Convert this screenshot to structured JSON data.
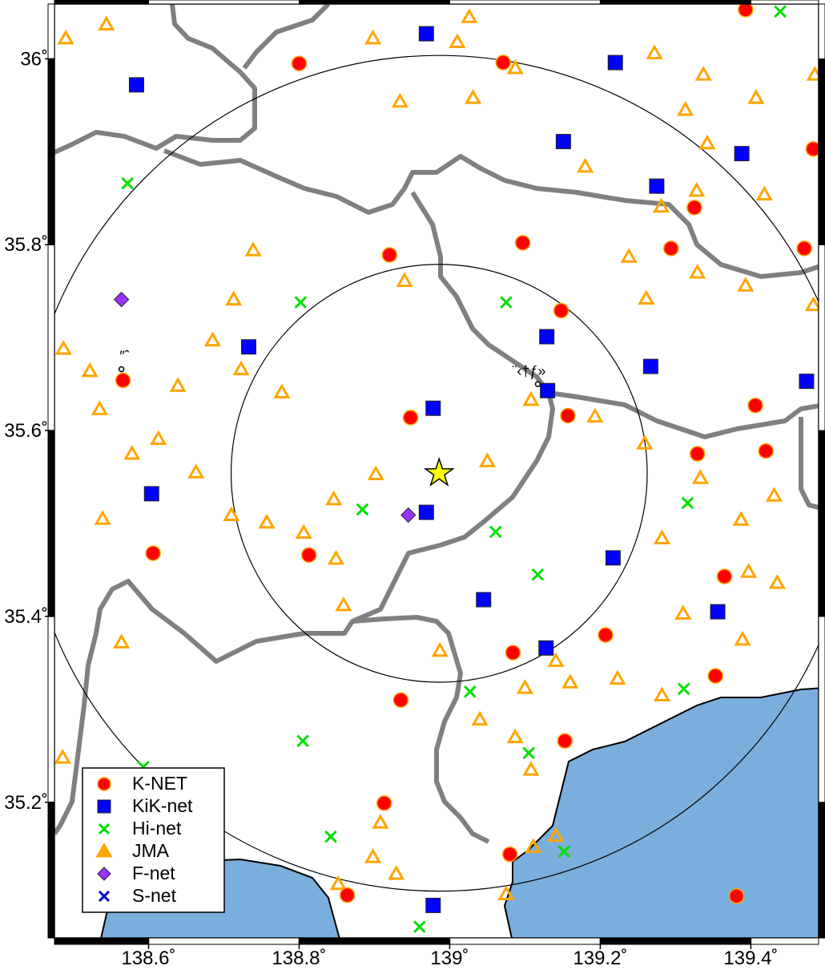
{
  "chart_data": {
    "type": "map",
    "xlim": [
      138.475,
      139.49
    ],
    "ylim": [
      35.054,
      36.059
    ],
    "xticks": [
      {
        "value": 138.6,
        "label": "138.6˚"
      },
      {
        "value": 138.8,
        "label": "138.8˚"
      },
      {
        "value": 139,
        "label": "139˚"
      },
      {
        "value": 139.2,
        "label": "139.2˚"
      },
      {
        "value": 139.4,
        "label": "139.4˚"
      }
    ],
    "yticks": [
      {
        "value": 35.2,
        "label": "35.2˚"
      },
      {
        "value": 35.4,
        "label": "35.4˚"
      },
      {
        "value": 35.6,
        "label": "35.6˚"
      },
      {
        "value": 35.8,
        "label": "35.8˚"
      },
      {
        "value": 36,
        "label": "36˚"
      }
    ],
    "epicenter": {
      "lon": 138.986,
      "lat": 35.554
    },
    "circle_radii_km": [
      25,
      50
    ],
    "places": [
      {
        "label": "″ˆ",
        "lon": 138.564,
        "lat": 35.666
      },
      {
        "label": "¨‹†ƒ»",
        "lon": 139.117,
        "lat": 35.65
      }
    ],
    "legend": "bottom-left",
    "series": [
      {
        "name": "K-NET",
        "color": "#ff0000",
        "marker": "circle",
        "x": [
          138.8,
          139.071,
          139.393,
          138.92,
          139.097,
          139.294,
          139.148,
          139.325,
          139.483,
          139.471,
          138.566,
          138.948,
          139.157,
          139.406,
          139.42,
          139.329,
          138.606,
          138.813,
          139.365,
          139.207,
          139.084,
          138.935,
          139.353,
          139.153,
          138.913,
          139.08,
          138.864,
          139.381
        ],
        "values": [
          35.995,
          35.996,
          36.053,
          35.789,
          35.802,
          35.796,
          35.729,
          35.84,
          35.903,
          35.796,
          35.654,
          35.614,
          35.616,
          35.627,
          35.578,
          35.575,
          35.468,
          35.466,
          35.443,
          35.38,
          35.361,
          35.31,
          35.336,
          35.266,
          35.199,
          35.144,
          35.1,
          35.099
        ]
      },
      {
        "name": "KiK-net",
        "color": "#0000ff",
        "marker": "square",
        "x": [
          138.584,
          138.969,
          139.22,
          139.151,
          139.388,
          139.275,
          138.733,
          139.129,
          139.267,
          139.474,
          139.13,
          138.978,
          138.604,
          138.969,
          139.217,
          139.045,
          139.128,
          139.356,
          138.978
        ],
        "values": [
          35.972,
          36.027,
          35.996,
          35.911,
          35.898,
          35.863,
          35.69,
          35.701,
          35.669,
          35.653,
          35.643,
          35.624,
          35.532,
          35.512,
          35.463,
          35.418,
          35.366,
          35.405,
          35.089
        ]
      },
      {
        "name": "Hi-net",
        "color": "#00e000",
        "marker": "x",
        "x": [
          139.439,
          138.572,
          138.802,
          139.075,
          138.884,
          139.061,
          139.117,
          139.027,
          138.805,
          139.105,
          139.316,
          139.311,
          138.593,
          138.842,
          139.152,
          138.96
        ],
        "values": [
          36.051,
          35.866,
          35.738,
          35.738,
          35.515,
          35.491,
          35.445,
          35.319,
          35.266,
          35.253,
          35.522,
          35.322,
          35.238,
          35.163,
          35.147,
          35.066
        ]
      },
      {
        "name": "JMA",
        "color": "#ffa500",
        "marker": "triangle",
        "x": [
          138.49,
          138.544,
          139.026,
          139.01,
          138.898,
          139.087,
          139.337,
          138.934,
          139.031,
          139.313,
          139.272,
          139.342,
          139.407,
          139.18,
          139.418,
          139.328,
          139.281,
          139.238,
          138.739,
          138.94,
          139.329,
          139.261,
          139.393,
          138.713,
          138.522,
          138.487,
          138.535,
          138.578,
          138.613,
          138.639,
          138.685,
          138.723,
          138.777,
          138.663,
          138.71,
          138.806,
          138.846,
          138.902,
          138.849,
          138.859,
          138.987,
          139.05,
          139.108,
          139.193,
          139.259,
          139.333,
          139.282,
          139.387,
          139.431,
          139.397,
          139.435,
          139.389,
          139.31,
          139.282,
          139.223,
          139.141,
          139.16,
          139.1,
          139.108,
          139.087,
          139.04,
          139.075,
          138.929,
          138.898,
          138.908,
          138.852,
          139.111,
          139.141,
          138.539,
          138.757,
          138.564,
          138.486,
          139.485,
          139.483
        ],
        "values": [
          36.022,
          36.037,
          36.045,
          36.018,
          36.022,
          35.99,
          35.983,
          35.954,
          35.958,
          35.945,
          36.006,
          35.909,
          35.958,
          35.884,
          35.854,
          35.858,
          35.841,
          35.787,
          35.794,
          35.761,
          35.77,
          35.742,
          35.756,
          35.741,
          35.664,
          35.688,
          35.623,
          35.575,
          35.591,
          35.648,
          35.697,
          35.666,
          35.641,
          35.555,
          35.509,
          35.49,
          35.526,
          35.553,
          35.462,
          35.412,
          35.363,
          35.567,
          35.633,
          35.615,
          35.586,
          35.549,
          35.484,
          35.504,
          35.53,
          35.448,
          35.436,
          35.375,
          35.403,
          35.315,
          35.333,
          35.352,
          35.329,
          35.323,
          35.235,
          35.27,
          35.289,
          35.101,
          35.123,
          35.141,
          35.178,
          35.112,
          35.152,
          35.164,
          35.505,
          35.501,
          35.372,
          35.248,
          35.983,
          35.735
        ]
      },
      {
        "name": "F-net",
        "color": "#9933ff",
        "marker": "diamond",
        "x": [
          138.564,
          138.945
        ],
        "values": [
          35.741,
          35.509
        ]
      },
      {
        "name": "S-net",
        "color": "#0000cc",
        "marker": "x",
        "x": [],
        "values": []
      }
    ]
  }
}
